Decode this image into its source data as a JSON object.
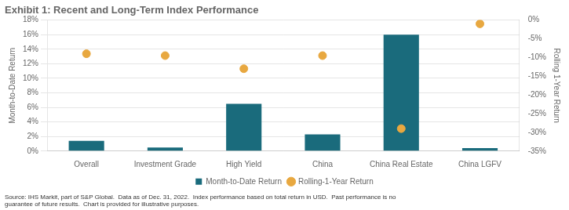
{
  "chart_data": {
    "type": "bar",
    "title": "Exhibit 1: Recent and Long-Term Index Performance",
    "categories": [
      "Overall",
      "Investment Grade",
      "High Yield",
      "China",
      "China Real Estate",
      "China LGFV"
    ],
    "series": [
      {
        "name": "Month-to-Date Return",
        "color": "#1a6b7c",
        "values": [
          1.4,
          0.5,
          6.5,
          2.3,
          16.0,
          0.4
        ]
      },
      {
        "name": "Rolling-1-Year Return",
        "type": "scatter",
        "marker": "o",
        "axis": "y2",
        "color": "#e8a840",
        "values": [
          -9.0,
          -9.5,
          -13.0,
          -9.5,
          -29.0,
          -1.0
        ]
      }
    ],
    "ylabel": "Month-to-Date Return",
    "y2label": "Rolling 1-Year Return",
    "ylim": [
      0,
      18
    ],
    "yticks": [
      {
        "value": 0,
        "label": "0%"
      },
      {
        "value": 2,
        "label": "2%"
      },
      {
        "value": 4,
        "label": "4%"
      },
      {
        "value": 6,
        "label": "6%"
      },
      {
        "value": 8,
        "label": "8%"
      },
      {
        "value": 10,
        "label": "10%"
      },
      {
        "value": 12,
        "label": "12%"
      },
      {
        "value": 14,
        "label": "14%"
      },
      {
        "value": 16,
        "label": "16%"
      },
      {
        "value": 18,
        "label": "18%"
      }
    ],
    "y2lim": [
      -35,
      0
    ],
    "y2ticks": [
      {
        "value": 0,
        "label": "0%"
      },
      {
        "value": -5,
        "label": "-5%"
      },
      {
        "value": -10,
        "label": "-10%"
      },
      {
        "value": -15,
        "label": "-15%"
      },
      {
        "value": -20,
        "label": "-20%"
      },
      {
        "value": -25,
        "label": "-25%"
      },
      {
        "value": -30,
        "label": "-30%"
      },
      {
        "value": -35,
        "label": "-35%"
      }
    ],
    "grid": true,
    "legend": "bottom",
    "source": "Source: IHS Markit, part of S&P Global.  Data as of Dec. 31, 2022.  Index performance based on total return in USD.  Past performance is no\nguarantee of future results.  Chart is provided for illustrative purposes."
  }
}
